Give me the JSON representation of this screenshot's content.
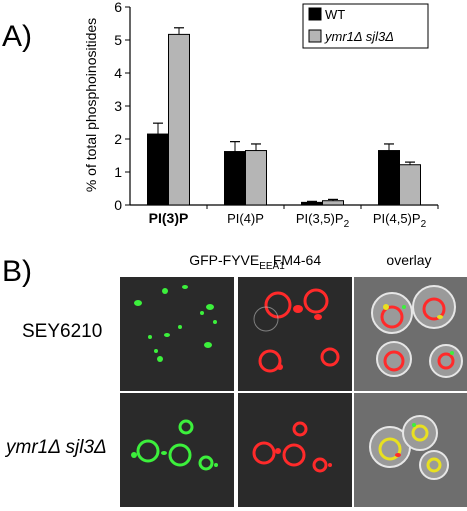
{
  "panel_a_label": "A)",
  "panel_b_label": "B)",
  "chart_data": {
    "type": "bar",
    "ylabel": "% of total phosphoinositides",
    "ylim": [
      0,
      6
    ],
    "yticks": [
      0,
      1,
      2,
      3,
      4,
      5,
      6
    ],
    "categories": [
      {
        "base": "PI(3)P",
        "sub": "",
        "bold": true
      },
      {
        "base": "PI(4)P",
        "sub": "",
        "bold": false
      },
      {
        "base": "PI(3,5)P",
        "sub": "2",
        "bold": false
      },
      {
        "base": "PI(4,5)P",
        "sub": "2",
        "bold": false
      }
    ],
    "series": [
      {
        "name": "WT",
        "color": "#000000",
        "values": [
          2.15,
          1.62,
          0.08,
          1.65
        ],
        "errors": [
          0.33,
          0.3,
          0.03,
          0.2
        ]
      },
      {
        "name": "ymr1Δ sjl3Δ",
        "italic": true,
        "color": "#b5b5b5",
        "values": [
          5.17,
          1.65,
          0.13,
          1.22
        ],
        "errors": [
          0.2,
          0.2,
          0.04,
          0.08
        ]
      }
    ],
    "legend_position": "top-right",
    "grid": false
  },
  "microscopy": {
    "columns": [
      {
        "base": "GFP-FYVE",
        "sub": "EEA1"
      },
      {
        "base": "FM4-64",
        "sub": ""
      },
      {
        "base": "overlay",
        "sub": ""
      }
    ],
    "rows": [
      {
        "label": "SEY6210",
        "italic": false
      },
      {
        "label": "ymr1Δ sjl3Δ",
        "italic": true
      }
    ]
  }
}
